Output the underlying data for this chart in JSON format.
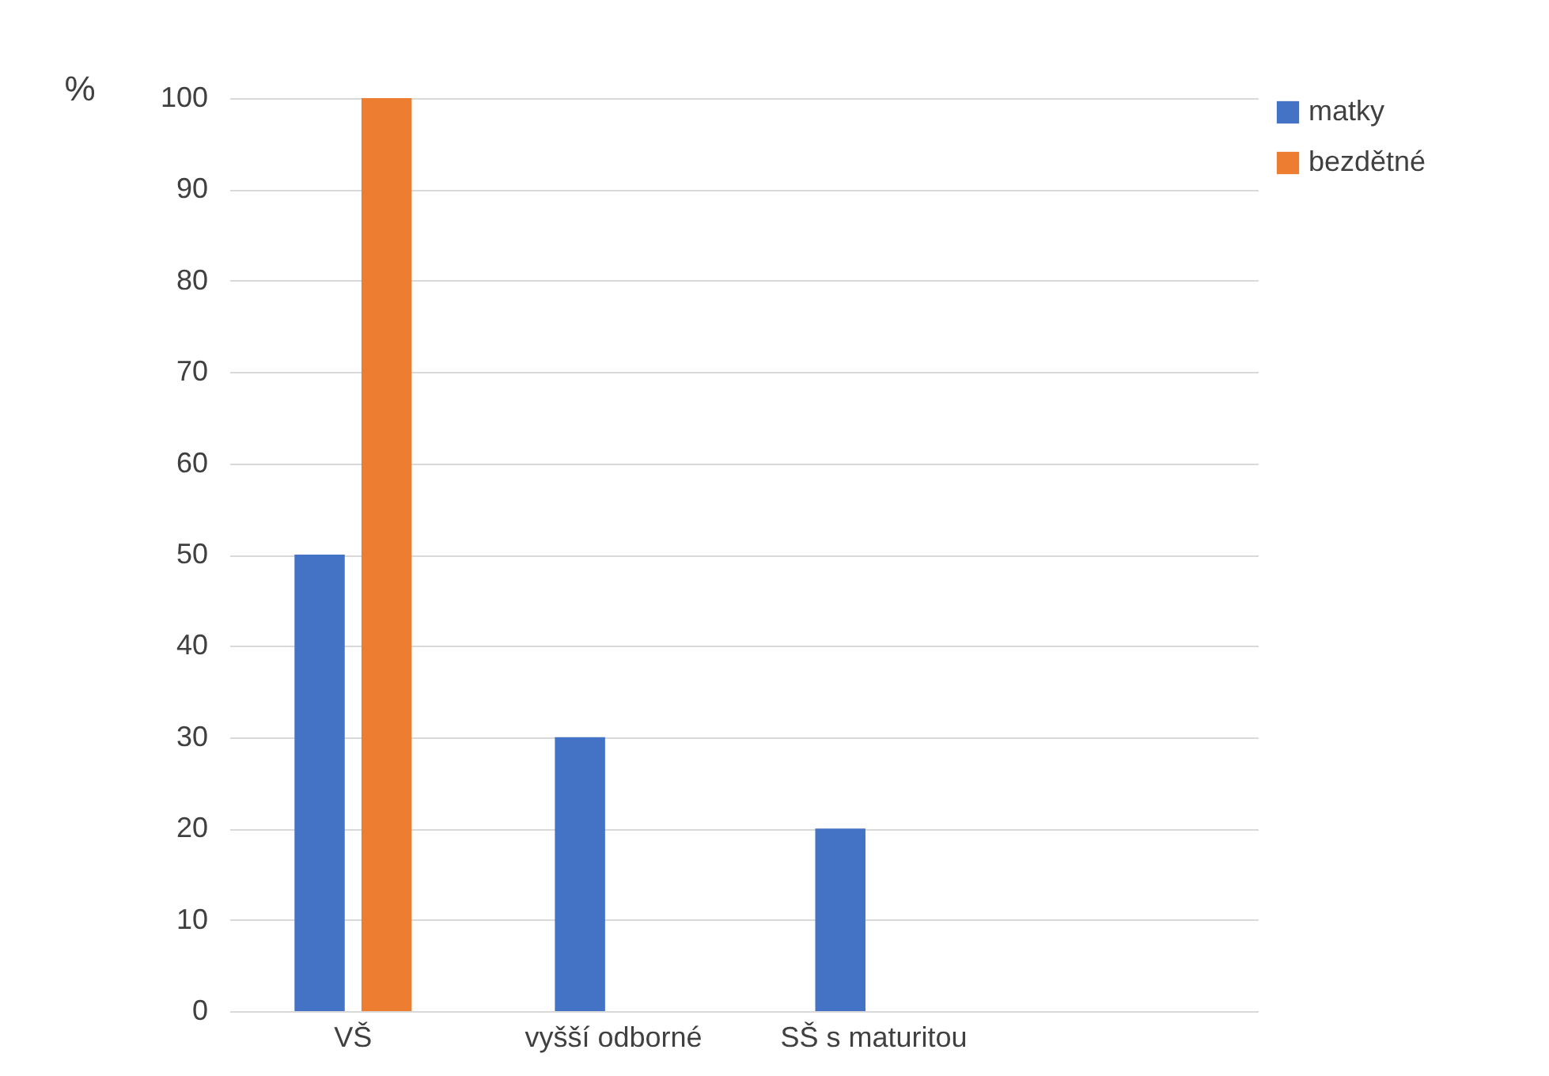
{
  "chart_data": {
    "type": "bar",
    "ylabel": "%",
    "categories": [
      "VŠ",
      "vyšší odborné",
      "SŠ s maturitou",
      null
    ],
    "series": [
      {
        "name": "matky",
        "color": "#4472c4",
        "values": [
          50,
          30,
          20,
          null
        ]
      },
      {
        "name": "bezdětné",
        "color": "#ed7d31",
        "values": [
          100,
          null,
          null,
          null
        ]
      }
    ],
    "ylim": [
      0,
      100
    ],
    "yticks": [
      0,
      10,
      20,
      30,
      40,
      50,
      60,
      70,
      80,
      90,
      100
    ],
    "grid": "y",
    "legend": "right"
  }
}
